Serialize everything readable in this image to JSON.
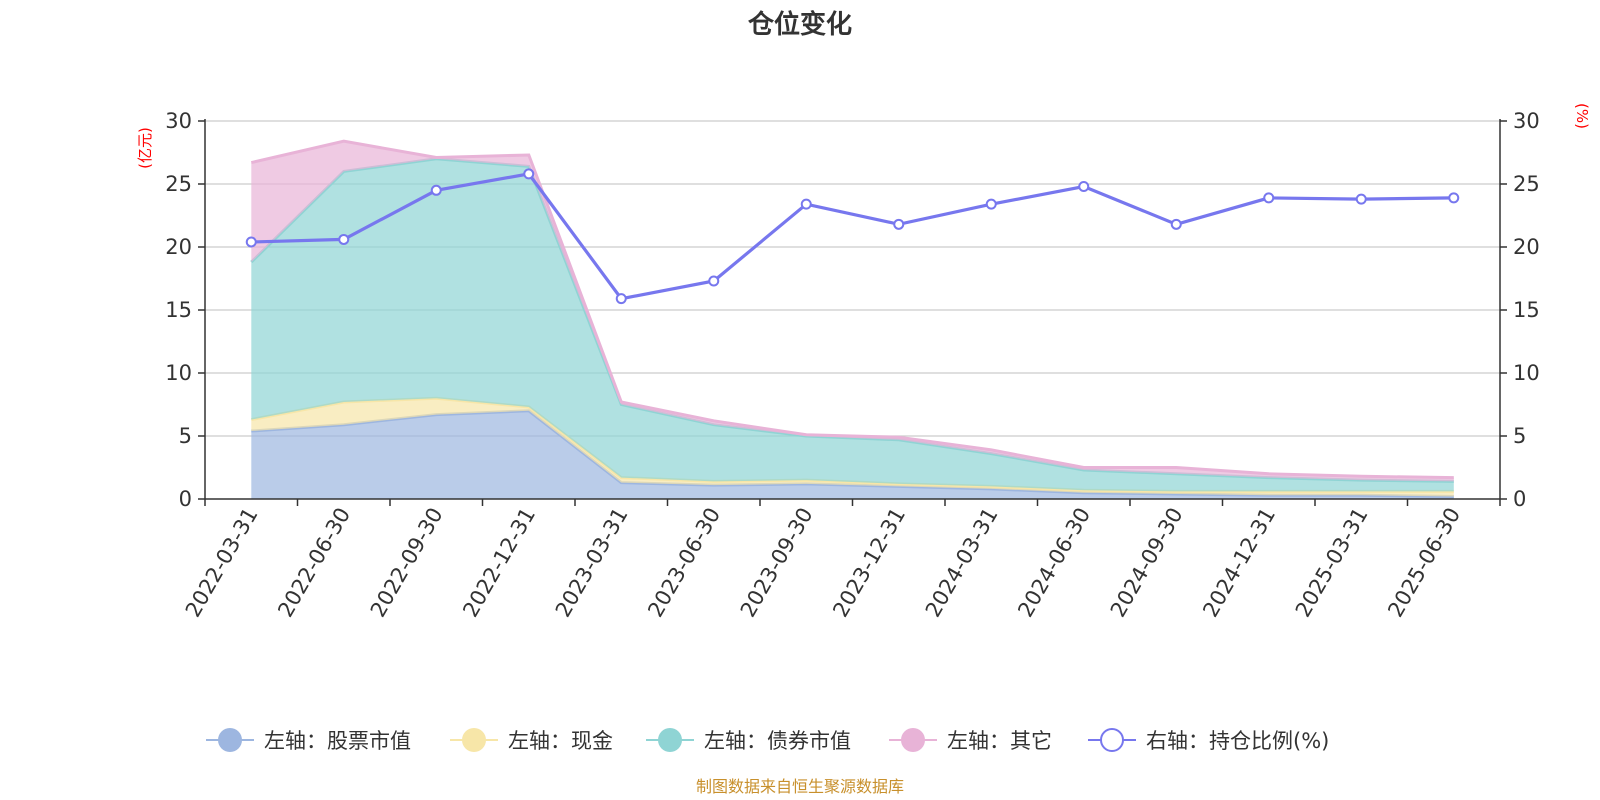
{
  "chart_data": {
    "type": "area",
    "title": "仓位变化",
    "left_axis_unit": "(亿元)",
    "right_axis_unit": "(%)",
    "categories": [
      "2022-03-31",
      "2022-06-30",
      "2022-09-30",
      "2022-12-31",
      "2023-03-31",
      "2023-06-30",
      "2023-09-30",
      "2023-12-31",
      "2024-03-31",
      "2024-06-30",
      "2024-09-30",
      "2024-12-31",
      "2025-03-31",
      "2025-06-30"
    ],
    "ylim_left": [
      0,
      30
    ],
    "ylim_right": [
      0,
      30
    ],
    "y_ticks": [
      0,
      5,
      10,
      15,
      20,
      25,
      30
    ],
    "stacked": true,
    "grid": true,
    "legend_position": "bottom",
    "series": [
      {
        "name": "左轴：股票市值",
        "axis": "left",
        "color": "#9db6e0",
        "values": [
          5.4,
          5.9,
          6.7,
          7.0,
          1.3,
          1.1,
          1.2,
          1.0,
          0.8,
          0.5,
          0.4,
          0.3,
          0.3,
          0.2
        ]
      },
      {
        "name": "左轴：现金",
        "axis": "left",
        "color": "#f7e6a8",
        "values": [
          0.9,
          1.8,
          1.3,
          0.3,
          0.4,
          0.3,
          0.3,
          0.2,
          0.2,
          0.2,
          0.2,
          0.3,
          0.3,
          0.4
        ]
      },
      {
        "name": "左轴：债券市值",
        "axis": "left",
        "color": "#8fd4d4",
        "values": [
          12.5,
          18.3,
          19.0,
          19.1,
          5.8,
          4.5,
          3.5,
          3.5,
          2.6,
          1.6,
          1.4,
          1.1,
          0.9,
          0.8
        ]
      },
      {
        "name": "左轴：其它",
        "axis": "left",
        "color": "#e8b3d7",
        "values": [
          7.9,
          2.4,
          0.1,
          0.9,
          0.2,
          0.3,
          0.1,
          0.2,
          0.3,
          0.2,
          0.5,
          0.3,
          0.3,
          0.3
        ]
      },
      {
        "name": "右轴：持仓比例(%)",
        "axis": "right",
        "type": "line",
        "color": "#7777ee",
        "values": [
          20.4,
          20.6,
          24.5,
          25.8,
          15.9,
          17.3,
          23.4,
          21.8,
          23.4,
          24.8,
          21.8,
          23.9,
          23.8,
          23.9
        ]
      }
    ],
    "source": "制图数据来自恒生聚源数据库"
  }
}
